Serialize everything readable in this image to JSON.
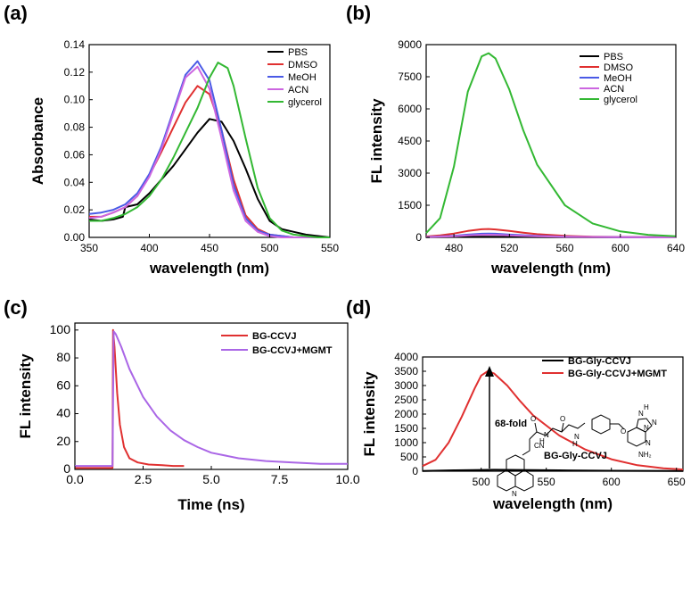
{
  "panel_labels": [
    "(a)",
    "(b)",
    "(c)",
    "(d)"
  ],
  "chart_data": [
    {
      "panel": "(a)",
      "type": "line",
      "xlabel": "wavelength (nm)",
      "ylabel": "Absorbance",
      "xlim": [
        350,
        550
      ],
      "ylim": [
        0,
        0.14
      ],
      "xticks": [
        350,
        400,
        450,
        500,
        550
      ],
      "yticks": [
        0.0,
        0.02,
        0.04,
        0.06,
        0.08,
        0.1,
        0.12,
        0.14
      ],
      "ytick_labels": [
        "0.00",
        "0.02",
        "0.04",
        "0.06",
        "0.08",
        "0.10",
        "0.12",
        "0.14"
      ],
      "legend_position": "top-right",
      "series": [
        {
          "name": "PBS",
          "color": "#000000",
          "x": [
            350,
            360,
            370,
            378,
            380,
            390,
            400,
            410,
            420,
            430,
            440,
            450,
            460,
            470,
            480,
            490,
            500,
            510,
            520,
            530,
            540,
            550
          ],
          "y": [
            0.013,
            0.012,
            0.013,
            0.015,
            0.022,
            0.024,
            0.032,
            0.042,
            0.052,
            0.064,
            0.076,
            0.086,
            0.084,
            0.07,
            0.05,
            0.028,
            0.012,
            0.006,
            0.004,
            0.002,
            0.001,
            0.0
          ]
        },
        {
          "name": "DMSO",
          "color": "#e03030",
          "x": [
            350,
            360,
            370,
            380,
            390,
            400,
            410,
            420,
            430,
            440,
            450,
            460,
            470,
            480,
            490,
            500,
            510,
            520,
            530,
            540,
            550
          ],
          "y": [
            0.015,
            0.015,
            0.018,
            0.022,
            0.03,
            0.045,
            0.062,
            0.08,
            0.098,
            0.11,
            0.104,
            0.078,
            0.042,
            0.016,
            0.006,
            0.002,
            0.001,
            0.0,
            0.0,
            0.0,
            0.0
          ]
        },
        {
          "name": "MeOH",
          "color": "#4a5ae6",
          "x": [
            350,
            360,
            370,
            380,
            390,
            400,
            410,
            420,
            430,
            440,
            450,
            460,
            470,
            480,
            490,
            500,
            510,
            520,
            530,
            540,
            550
          ],
          "y": [
            0.017,
            0.018,
            0.02,
            0.024,
            0.032,
            0.046,
            0.066,
            0.092,
            0.118,
            0.128,
            0.114,
            0.078,
            0.038,
            0.014,
            0.005,
            0.002,
            0.001,
            0.0,
            0.0,
            0.0,
            0.0
          ]
        },
        {
          "name": "ACN",
          "color": "#cc66e0",
          "x": [
            350,
            360,
            370,
            380,
            390,
            400,
            410,
            420,
            430,
            440,
            450,
            460,
            470,
            480,
            490,
            500,
            510,
            520,
            530,
            540,
            550
          ],
          "y": [
            0.014,
            0.015,
            0.018,
            0.022,
            0.03,
            0.044,
            0.064,
            0.09,
            0.116,
            0.124,
            0.108,
            0.072,
            0.034,
            0.012,
            0.004,
            0.001,
            0.0,
            0.0,
            0.0,
            0.0,
            0.0
          ]
        },
        {
          "name": "glycerol",
          "color": "#33b833",
          "x": [
            350,
            360,
            370,
            380,
            390,
            400,
            410,
            420,
            430,
            440,
            450,
            457,
            465,
            470,
            480,
            490,
            500,
            510,
            520,
            530,
            540,
            550
          ],
          "y": [
            0.012,
            0.012,
            0.014,
            0.017,
            0.022,
            0.03,
            0.042,
            0.058,
            0.076,
            0.094,
            0.116,
            0.127,
            0.123,
            0.11,
            0.072,
            0.036,
            0.014,
            0.005,
            0.002,
            0.001,
            0.0,
            0.0
          ]
        }
      ]
    },
    {
      "panel": "(b)",
      "type": "line",
      "xlabel": "wavelength (nm)",
      "ylabel": "FL intensity",
      "xlim": [
        460,
        640
      ],
      "ylim": [
        0,
        9000
      ],
      "xticks": [
        480,
        520,
        560,
        600,
        640
      ],
      "yticks": [
        0,
        1500,
        3000,
        4500,
        6000,
        7500,
        9000
      ],
      "legend_position": "top-right",
      "series": [
        {
          "name": "PBS",
          "color": "#000000",
          "x": [
            460,
            480,
            500,
            520,
            540,
            560,
            600,
            640
          ],
          "y": [
            10,
            20,
            30,
            25,
            15,
            10,
            5,
            2
          ]
        },
        {
          "name": "DMSO",
          "color": "#e03030",
          "x": [
            460,
            470,
            480,
            490,
            500,
            505,
            510,
            520,
            530,
            540,
            560,
            580,
            600,
            640
          ],
          "y": [
            40,
            90,
            180,
            300,
            380,
            390,
            370,
            300,
            220,
            150,
            70,
            35,
            20,
            5
          ]
        },
        {
          "name": "MeOH",
          "color": "#4a5ae6",
          "x": [
            460,
            480,
            490,
            500,
            505,
            510,
            520,
            540,
            560,
            600,
            640
          ],
          "y": [
            20,
            70,
            130,
            170,
            180,
            170,
            130,
            70,
            35,
            10,
            3
          ]
        },
        {
          "name": "ACN",
          "color": "#cc66e0",
          "x": [
            460,
            480,
            490,
            500,
            505,
            510,
            520,
            540,
            560,
            600,
            640
          ],
          "y": [
            15,
            50,
            90,
            120,
            125,
            120,
            90,
            50,
            25,
            8,
            2
          ]
        },
        {
          "name": "glycerol",
          "color": "#33b833",
          "x": [
            460,
            470,
            480,
            490,
            500,
            505,
            510,
            520,
            530,
            540,
            560,
            580,
            600,
            620,
            640
          ],
          "y": [
            200,
            900,
            3300,
            6800,
            8450,
            8600,
            8350,
            6900,
            5000,
            3400,
            1500,
            650,
            280,
            120,
            50
          ]
        }
      ]
    },
    {
      "panel": "(c)",
      "type": "line",
      "xlabel": "Time (ns)",
      "ylabel": "FL intensity",
      "xlim": [
        0,
        10
      ],
      "ylim": [
        0,
        105
      ],
      "xticks": [
        0.0,
        2.5,
        5.0,
        7.5,
        10.0
      ],
      "xtick_labels": [
        "0.0",
        "2.5",
        "5.0",
        "7.5",
        "10.0"
      ],
      "yticks": [
        0,
        20,
        40,
        60,
        80,
        100
      ],
      "legend_position": "top-right",
      "series": [
        {
          "name": "BG-CCVJ",
          "color": "#e03030",
          "x": [
            0,
            1.38,
            1.4,
            1.45,
            1.55,
            1.65,
            1.8,
            2.0,
            2.3,
            2.7,
            3.2,
            3.6,
            4.0
          ],
          "y": [
            1,
            1,
            100,
            88,
            55,
            32,
            16,
            8,
            5,
            3.5,
            3,
            2.5,
            2.5
          ]
        },
        {
          "name": "BG-CCVJ+MGMT",
          "color": "#aa66e6",
          "x": [
            0,
            1.38,
            1.42,
            1.5,
            1.7,
            2.0,
            2.5,
            3.0,
            3.5,
            4.0,
            4.5,
            5.0,
            6.0,
            7.0,
            8.0,
            9.0,
            10.0
          ],
          "y": [
            2.5,
            2.5,
            99,
            97,
            88,
            72,
            52,
            38,
            28,
            21,
            16,
            12,
            8,
            6,
            5,
            4,
            4
          ]
        }
      ]
    },
    {
      "panel": "(d)",
      "type": "line",
      "xlabel": "wavelength (nm)",
      "ylabel": "FL intensity",
      "xlim": [
        455,
        655
      ],
      "ylim": [
        0,
        4000
      ],
      "xticks": [
        500,
        550,
        600,
        650
      ],
      "yticks": [
        0,
        500,
        1000,
        1500,
        2000,
        2500,
        3000,
        3500,
        4000
      ],
      "legend_position": "top-right",
      "annotation": "68-fold",
      "inset_label": "BG-Gly-CCVJ",
      "series": [
        {
          "name": "BG-Gly-CCVJ",
          "color": "#000000",
          "x": [
            455,
            480,
            500,
            510,
            520,
            540,
            560,
            600,
            655
          ],
          "y": [
            10,
            30,
            45,
            50,
            48,
            40,
            30,
            15,
            5
          ]
        },
        {
          "name": "BG-Gly-CCVJ+MGMT",
          "color": "#e03030",
          "x": [
            455,
            465,
            475,
            485,
            495,
            500,
            505,
            510,
            520,
            530,
            540,
            560,
            580,
            600,
            620,
            640,
            655
          ],
          "y": [
            180,
            400,
            1000,
            1900,
            2900,
            3350,
            3500,
            3420,
            3000,
            2450,
            1950,
            1250,
            760,
            420,
            210,
            100,
            60
          ]
        }
      ]
    }
  ],
  "structure_atom_labels": [
    "O",
    "H",
    "N",
    "O",
    "N",
    "H",
    "O",
    "CN",
    "N",
    "N",
    "N",
    "N",
    "H",
    "N",
    "NH₂"
  ]
}
